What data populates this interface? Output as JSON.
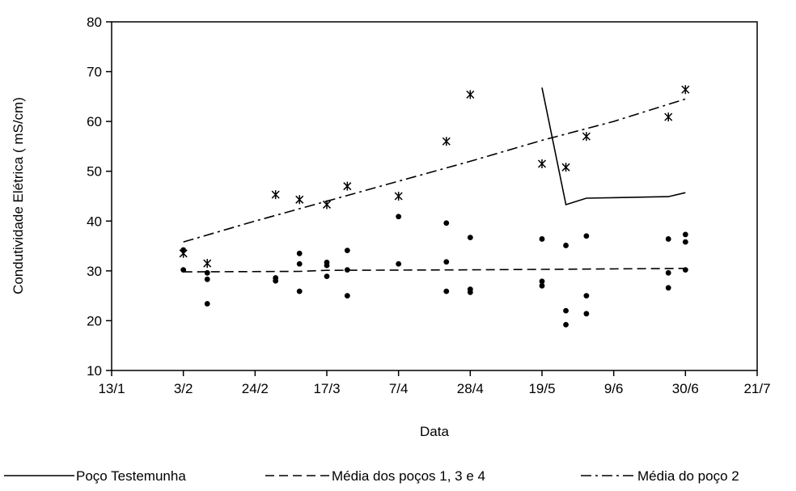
{
  "chart_data": {
    "type": "scatter",
    "title": "",
    "xlabel": "Data",
    "ylabel": "Condutividade Elétrica ( mS/cm)",
    "xlim": [
      "13/1",
      "21/7"
    ],
    "ylim": [
      10,
      80
    ],
    "x_ticks": [
      "13/1",
      "3/2",
      "24/2",
      "17/3",
      "7/4",
      "28/4",
      "19/5",
      "9/6",
      "30/6",
      "21/7"
    ],
    "y_ticks": [
      10,
      20,
      30,
      40,
      50,
      60,
      70,
      80
    ],
    "grid": false,
    "legend_position": "bottom",
    "colors": {
      "ink": "#000000",
      "background": "#ffffff"
    },
    "legend": [
      {
        "label": "Poço Testemunha",
        "style": "solid"
      },
      {
        "label": "Média dos poços 1, 3 e 4",
        "style": "dashed"
      },
      {
        "label": "Média do poço 2",
        "style": "dashdot"
      }
    ],
    "series": [
      {
        "kind": "points",
        "marker": "circle",
        "points": [
          [
            "3/2",
            34.2
          ],
          [
            "3/2",
            30.2
          ],
          [
            "10/2",
            29.6
          ],
          [
            "10/2",
            28.3
          ],
          [
            "10/2",
            23.4
          ],
          [
            "2/3",
            28.6
          ],
          [
            "2/3",
            28.0
          ],
          [
            "9/3",
            33.5
          ],
          [
            "9/3",
            31.4
          ],
          [
            "9/3",
            25.9
          ],
          [
            "17/3",
            31.7
          ],
          [
            "17/3",
            31.1
          ],
          [
            "17/3",
            28.9
          ],
          [
            "23/3",
            34.1
          ],
          [
            "23/3",
            30.2
          ],
          [
            "23/3",
            25.0
          ],
          [
            "7/4",
            40.9
          ],
          [
            "7/4",
            31.4
          ],
          [
            "21/4",
            39.6
          ],
          [
            "21/4",
            31.8
          ],
          [
            "21/4",
            25.9
          ],
          [
            "28/4",
            36.7
          ],
          [
            "28/4",
            26.3
          ],
          [
            "28/4",
            25.7
          ],
          [
            "19/5",
            36.4
          ],
          [
            "19/5",
            27.9
          ],
          [
            "19/5",
            27.0
          ],
          [
            "26/5",
            35.1
          ],
          [
            "26/5",
            22.0
          ],
          [
            "26/5",
            19.2
          ],
          [
            "1/6",
            37.0
          ],
          [
            "1/6",
            25.0
          ],
          [
            "1/6",
            21.4
          ],
          [
            "25/6",
            36.4
          ],
          [
            "25/6",
            29.6
          ],
          [
            "25/6",
            26.6
          ],
          [
            "30/6",
            37.3
          ],
          [
            "30/6",
            35.8
          ],
          [
            "30/6",
            30.2
          ]
        ]
      },
      {
        "kind": "points",
        "marker": "asterisk",
        "points": [
          [
            "3/2",
            33.5
          ],
          [
            "10/2",
            31.5
          ],
          [
            "2/3",
            45.3
          ],
          [
            "9/3",
            44.3
          ],
          [
            "17/3",
            43.3
          ],
          [
            "23/3",
            47.0
          ],
          [
            "7/4",
            45.0
          ],
          [
            "21/4",
            56.0
          ],
          [
            "28/4",
            65.4
          ],
          [
            "19/5",
            51.5
          ],
          [
            "26/5",
            50.8
          ],
          [
            "1/6",
            57.0
          ],
          [
            "25/6",
            60.9
          ],
          [
            "30/6",
            66.4
          ]
        ]
      },
      {
        "kind": "line",
        "style": "solid",
        "legend_index": 0,
        "points": [
          [
            "19/5",
            66.8
          ],
          [
            "26/5",
            43.3
          ],
          [
            "1/6",
            44.6
          ],
          [
            "25/6",
            44.9
          ],
          [
            "30/6",
            45.7
          ]
        ]
      },
      {
        "kind": "line",
        "style": "dashed",
        "legend_index": 1,
        "points": [
          [
            "3/2",
            29.8
          ],
          [
            "9/3",
            29.9
          ],
          [
            "17/3",
            30.1
          ],
          [
            "28/4",
            30.2
          ],
          [
            "19/5",
            30.3
          ],
          [
            "30/6",
            30.5
          ]
        ]
      },
      {
        "kind": "line",
        "style": "dashdot",
        "legend_index": 2,
        "points": [
          [
            "3/2",
            35.8
          ],
          [
            "24/2",
            40.0
          ],
          [
            "17/3",
            44.0
          ],
          [
            "7/4",
            48.0
          ],
          [
            "28/4",
            52.0
          ],
          [
            "19/5",
            56.2
          ],
          [
            "9/6",
            60.0
          ],
          [
            "30/6",
            64.5
          ]
        ]
      }
    ]
  }
}
